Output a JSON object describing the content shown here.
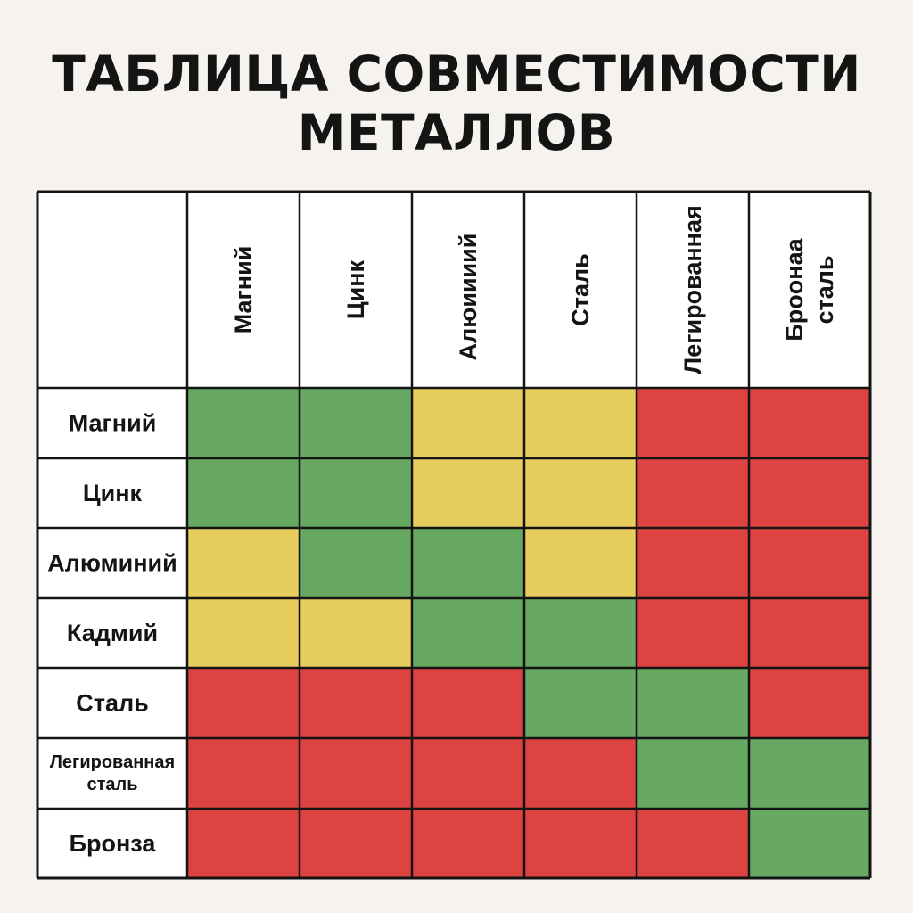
{
  "title_lines": [
    "ТАБЛИЦА СОВМЕСТИМОСТИ",
    "МЕТАЛЛОВ"
  ],
  "colors": {
    "green": "#67a862",
    "yellow": "#e7cd5d",
    "red": "#dd4341",
    "background": "#f6f3ef",
    "header_bg": "#ffffff",
    "border": "#141414"
  },
  "chart_data": {
    "type": "heatmap",
    "columns": [
      [
        "Магний"
      ],
      [
        "Цинк"
      ],
      [
        "Алюиииий"
      ],
      [
        "Сталь"
      ],
      [
        "Легированная"
      ],
      [
        "Броонаа",
        "сталь"
      ]
    ],
    "rows": [
      [
        "Магний"
      ],
      [
        "Цинк"
      ],
      [
        "Алюминий"
      ],
      [
        "Кадмий"
      ],
      [
        "Сталь"
      ],
      [
        "Легированная",
        "сталь"
      ],
      [
        "Бронза"
      ]
    ],
    "cells": [
      [
        "green",
        "green",
        "yellow",
        "yellow",
        "red",
        "red"
      ],
      [
        "green",
        "green",
        "yellow",
        "yellow",
        "red",
        "red"
      ],
      [
        "yellow",
        "green",
        "green",
        "yellow",
        "red",
        "red"
      ],
      [
        "yellow",
        "yellow",
        "green",
        "green",
        "red",
        "red"
      ],
      [
        "red",
        "red",
        "red",
        "green",
        "green",
        "red"
      ],
      [
        "red",
        "red",
        "red",
        "red",
        "green",
        "green"
      ],
      [
        "red",
        "red",
        "red",
        "red",
        "red",
        "green"
      ]
    ]
  }
}
